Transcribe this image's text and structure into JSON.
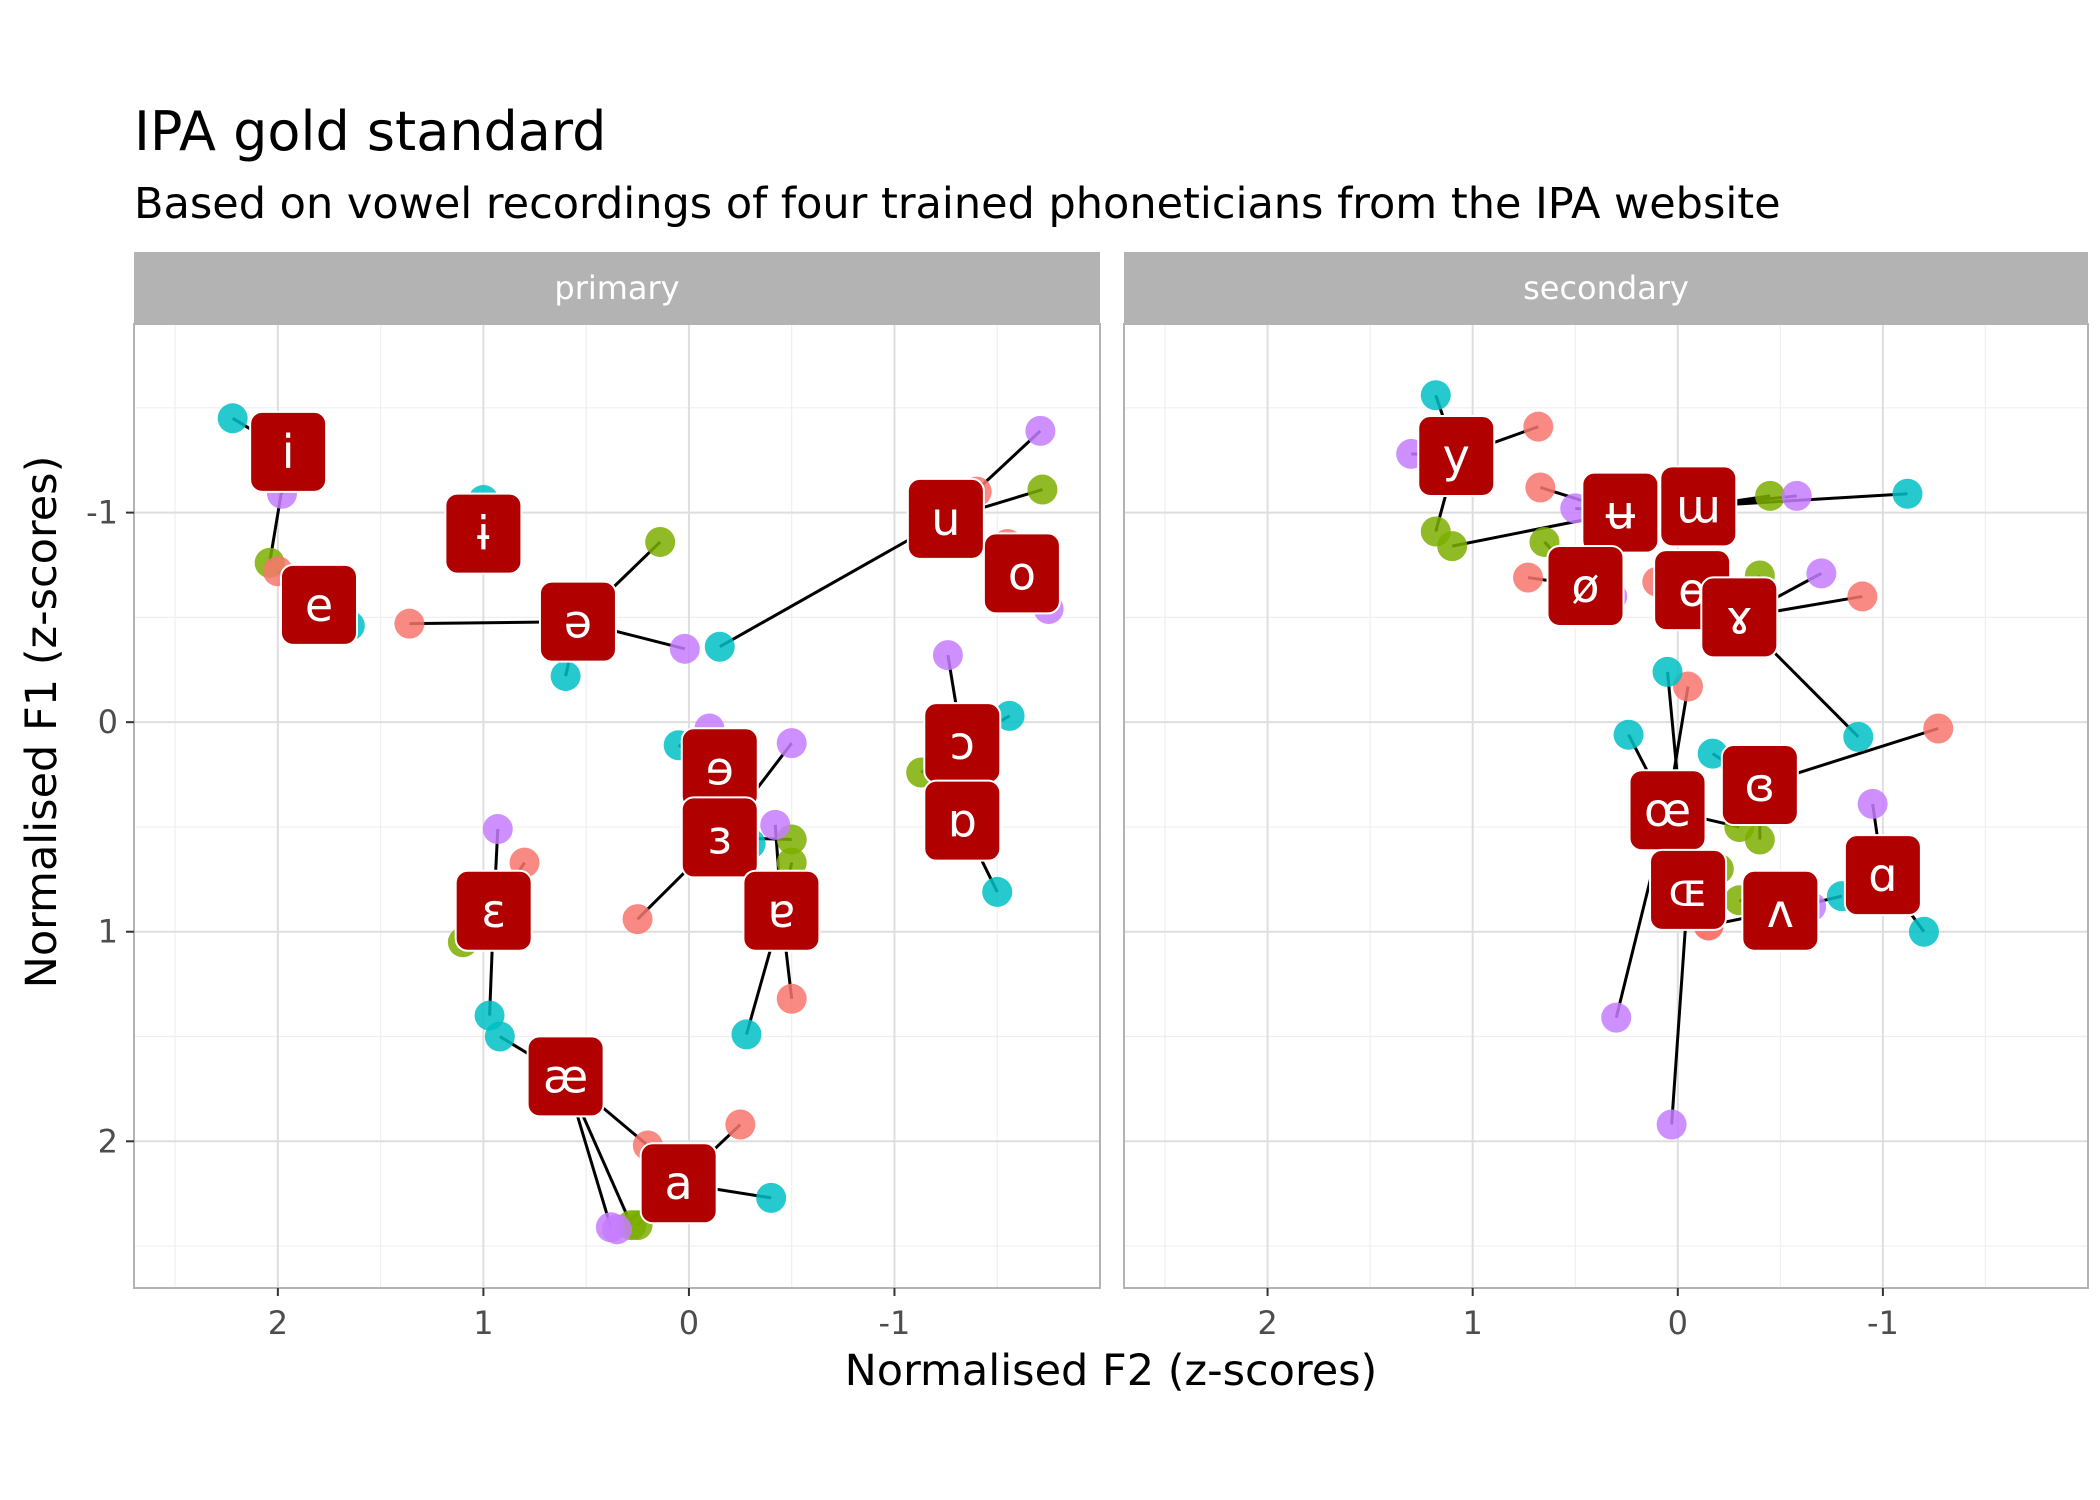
{
  "chart_data": {
    "type": "scatter",
    "title": "IPA gold standard",
    "subtitle": "Based on vowel recordings of four trained phoneticians from the IPA website",
    "xlabel": "Normalised F2 (z-scores)",
    "ylabel": "Normalised F1 (z-scores)",
    "x_reversed": true,
    "y_reversed": true,
    "xlim": [
      2.7,
      -2.0
    ],
    "ylim": [
      -1.9,
      2.7
    ],
    "x_ticks": [
      2,
      1,
      0,
      -1
    ],
    "x_tick_labels": [
      "2",
      "1",
      "0",
      "-1"
    ],
    "y_ticks": [
      -1,
      0,
      1,
      2
    ],
    "y_tick_labels": [
      "-1",
      "0",
      "1",
      "2"
    ],
    "grid": true,
    "legend": "none",
    "speaker_colors": [
      "#F8766D",
      "#7CAE00",
      "#00BFC4",
      "#C77CFF"
    ],
    "label_color": "#B00000",
    "panels": [
      {
        "name": "primary",
        "vowels": [
          {
            "label": "i",
            "x": 1.95,
            "y": -1.29,
            "points": [
              {
                "x": 2.22,
                "y": -1.45,
                "c": 2
              },
              {
                "x": 2.05,
                "y": -1.36,
                "c": 0
              },
              {
                "x": 2.04,
                "y": -0.76,
                "c": 1
              },
              {
                "x": 1.98,
                "y": -1.09,
                "c": 3
              }
            ]
          },
          {
            "label": "e",
            "x": 1.8,
            "y": -0.56,
            "points": [
              {
                "x": 2.0,
                "y": -0.72,
                "c": 0
              },
              {
                "x": 1.78,
                "y": -0.6,
                "c": 1
              },
              {
                "x": 1.65,
                "y": -0.46,
                "c": 2
              },
              {
                "x": 1.8,
                "y": -0.52,
                "c": 3
              }
            ]
          },
          {
            "label": "ɨ",
            "x": 1.0,
            "y": -0.9,
            "points": [
              {
                "x": 1.0,
                "y": -1.06,
                "c": 2
              },
              {
                "x": 1.02,
                "y": -0.95,
                "c": 0
              },
              {
                "x": 0.95,
                "y": -0.9,
                "c": 1
              },
              {
                "x": 1.08,
                "y": -0.86,
                "c": 3
              }
            ]
          },
          {
            "label": "ə",
            "x": 0.54,
            "y": -0.48,
            "points": [
              {
                "x": 1.36,
                "y": -0.47,
                "c": 0
              },
              {
                "x": 0.14,
                "y": -0.86,
                "c": 1
              },
              {
                "x": 0.6,
                "y": -0.22,
                "c": 2
              },
              {
                "x": 0.02,
                "y": -0.35,
                "c": 3
              }
            ]
          },
          {
            "label": "u",
            "x": -1.25,
            "y": -0.97,
            "points": [
              {
                "x": -1.4,
                "y": -1.1,
                "c": 0
              },
              {
                "x": -1.72,
                "y": -1.11,
                "c": 1
              },
              {
                "x": -0.15,
                "y": -0.36,
                "c": 2
              },
              {
                "x": -1.71,
                "y": -1.39,
                "c": 3
              }
            ]
          },
          {
            "label": "o",
            "x": -1.62,
            "y": -0.71,
            "points": [
              {
                "x": -1.55,
                "y": -0.85,
                "c": 0
              },
              {
                "x": -1.6,
                "y": -0.62,
                "c": 1
              },
              {
                "x": -1.68,
                "y": -0.6,
                "c": 2
              },
              {
                "x": -1.75,
                "y": -0.54,
                "c": 3
              }
            ]
          },
          {
            "label": "ɔ",
            "x": -1.33,
            "y": 0.1,
            "points": [
              {
                "x": -1.35,
                "y": 0.07,
                "c": 0
              },
              {
                "x": -1.13,
                "y": 0.24,
                "c": 1
              },
              {
                "x": -1.56,
                "y": -0.03,
                "c": 2
              },
              {
                "x": -1.26,
                "y": -0.32,
                "c": 3
              }
            ]
          },
          {
            "label": "ɒ",
            "x": -1.33,
            "y": 0.47,
            "points": [
              {
                "x": -1.3,
                "y": 0.4,
                "c": 0
              },
              {
                "x": -1.3,
                "y": 0.52,
                "c": 1
              },
              {
                "x": -1.5,
                "y": 0.81,
                "c": 2
              },
              {
                "x": -1.3,
                "y": 0.44,
                "c": 3
              }
            ]
          },
          {
            "label": "ɘ",
            "x": -0.15,
            "y": 0.22,
            "points": [
              {
                "x": -0.25,
                "y": 0.18,
                "c": 0
              },
              {
                "x": -0.2,
                "y": 0.27,
                "c": 1
              },
              {
                "x": 0.05,
                "y": 0.11,
                "c": 2
              },
              {
                "x": -0.1,
                "y": 0.03,
                "c": 3
              }
            ]
          },
          {
            "label": "ɜ",
            "x": -0.15,
            "y": 0.55,
            "points": [
              {
                "x": 0.25,
                "y": 0.94,
                "c": 0
              },
              {
                "x": -0.5,
                "y": 0.56,
                "c": 1
              },
              {
                "x": -0.3,
                "y": 0.58,
                "c": 2
              },
              {
                "x": -0.5,
                "y": 0.1,
                "c": 3
              }
            ]
          },
          {
            "label": "ɐ",
            "x": -0.45,
            "y": 0.9,
            "points": [
              {
                "x": -0.5,
                "y": 1.32,
                "c": 0
              },
              {
                "x": -0.5,
                "y": 0.67,
                "c": 1
              },
              {
                "x": -0.28,
                "y": 1.49,
                "c": 2
              },
              {
                "x": -0.42,
                "y": 0.49,
                "c": 3
              }
            ]
          },
          {
            "label": "ɛ",
            "x": 0.95,
            "y": 0.9,
            "points": [
              {
                "x": 0.8,
                "y": 0.67,
                "c": 0
              },
              {
                "x": 1.1,
                "y": 1.05,
                "c": 1
              },
              {
                "x": 0.97,
                "y": 1.4,
                "c": 2
              },
              {
                "x": 0.93,
                "y": 0.51,
                "c": 3
              }
            ]
          },
          {
            "label": "æ",
            "x": 0.6,
            "y": 1.69,
            "points": [
              {
                "x": 0.2,
                "y": 2.02,
                "c": 0
              },
              {
                "x": 0.28,
                "y": 2.4,
                "c": 1
              },
              {
                "x": 0.92,
                "y": 1.5,
                "c": 2
              },
              {
                "x": 0.38,
                "y": 2.41,
                "c": 3
              }
            ]
          },
          {
            "label": "a",
            "x": 0.05,
            "y": 2.2,
            "points": [
              {
                "x": -0.25,
                "y": 1.92,
                "c": 0
              },
              {
                "x": 0.25,
                "y": 2.4,
                "c": 1
              },
              {
                "x": -0.4,
                "y": 2.27,
                "c": 2
              },
              {
                "x": 0.35,
                "y": 2.42,
                "c": 3
              }
            ]
          }
        ]
      },
      {
        "name": "secondary",
        "vowels": [
          {
            "label": "y",
            "x": 1.08,
            "y": -1.27,
            "points": [
              {
                "x": 0.68,
                "y": -1.41,
                "c": 0
              },
              {
                "x": 1.18,
                "y": -0.91,
                "c": 1
              },
              {
                "x": 1.18,
                "y": -1.56,
                "c": 2
              },
              {
                "x": 1.3,
                "y": -1.28,
                "c": 3
              }
            ]
          },
          {
            "label": "ʉ",
            "x": 0.28,
            "y": -1.0,
            "points": [
              {
                "x": 0.67,
                "y": -1.12,
                "c": 0
              },
              {
                "x": 1.1,
                "y": -0.84,
                "c": 1
              },
              {
                "x": 0.3,
                "y": -1.05,
                "c": 2
              },
              {
                "x": 0.5,
                "y": -1.02,
                "c": 3
              }
            ]
          },
          {
            "label": "ɯ",
            "x": -0.1,
            "y": -1.03,
            "points": [
              {
                "x": -0.2,
                "y": -1.06,
                "c": 0
              },
              {
                "x": -0.45,
                "y": -1.08,
                "c": 1
              },
              {
                "x": -1.12,
                "y": -1.09,
                "c": 2
              },
              {
                "x": -0.58,
                "y": -1.08,
                "c": 3
              }
            ]
          },
          {
            "label": "ø",
            "x": 0.45,
            "y": -0.65,
            "points": [
              {
                "x": 0.73,
                "y": -0.69,
                "c": 0
              },
              {
                "x": 0.65,
                "y": -0.86,
                "c": 1
              },
              {
                "x": 0.5,
                "y": -0.72,
                "c": 2
              },
              {
                "x": 0.32,
                "y": -0.6,
                "c": 3
              }
            ]
          },
          {
            "label": "ɵ",
            "x": -0.07,
            "y": -0.63,
            "points": [
              {
                "x": 0.1,
                "y": -0.67,
                "c": 0
              },
              {
                "x": -0.05,
                "y": -0.7,
                "c": 1
              },
              {
                "x": -0.15,
                "y": -0.6,
                "c": 2
              },
              {
                "x": 0.05,
                "y": -0.64,
                "c": 3
              }
            ]
          },
          {
            "label": "ɤ",
            "x": -0.3,
            "y": -0.5,
            "points": [
              {
                "x": -0.9,
                "y": -0.6,
                "c": 0
              },
              {
                "x": -0.4,
                "y": -0.7,
                "c": 1
              },
              {
                "x": -0.88,
                "y": 0.07,
                "c": 2
              },
              {
                "x": -0.7,
                "y": -0.71,
                "c": 3
              }
            ]
          },
          {
            "label": "ɞ",
            "x": -0.4,
            "y": 0.3,
            "points": [
              {
                "x": -1.27,
                "y": 0.03,
                "c": 0
              },
              {
                "x": -0.4,
                "y": 0.56,
                "c": 1
              },
              {
                "x": -0.17,
                "y": 0.15,
                "c": 2
              },
              {
                "x": -0.3,
                "y": 0.35,
                "c": 3
              }
            ]
          },
          {
            "label": "œ",
            "x": 0.05,
            "y": 0.42,
            "points": [
              {
                "x": -0.05,
                "y": -0.17,
                "c": 0
              },
              {
                "x": -0.3,
                "y": 0.5,
                "c": 1
              },
              {
                "x": 0.24,
                "y": 0.06,
                "c": 2
              },
              {
                "x": 0.3,
                "y": 1.41,
                "c": 3
              }
            ]
          },
          {
            "label": "ɶ",
            "x": -0.05,
            "y": 0.8,
            "points": [
              {
                "x": -0.15,
                "y": 0.97,
                "c": 0
              },
              {
                "x": -0.2,
                "y": 0.7,
                "c": 1
              },
              {
                "x": 0.05,
                "y": -0.24,
                "c": 2
              },
              {
                "x": 0.03,
                "y": 1.92,
                "c": 3
              }
            ]
          },
          {
            "label": "ʌ",
            "x": -0.5,
            "y": 0.9,
            "points": [
              {
                "x": -0.15,
                "y": 0.97,
                "c": 0
              },
              {
                "x": -0.3,
                "y": 0.85,
                "c": 1
              },
              {
                "x": -0.8,
                "y": 0.83,
                "c": 2
              },
              {
                "x": -0.65,
                "y": 0.88,
                "c": 3
              }
            ]
          },
          {
            "label": "ɑ",
            "x": -1.0,
            "y": 0.73,
            "points": [
              {
                "x": -0.95,
                "y": 0.7,
                "c": 0
              },
              {
                "x": -1.0,
                "y": 0.75,
                "c": 1
              },
              {
                "x": -1.2,
                "y": 1.0,
                "c": 2
              },
              {
                "x": -0.95,
                "y": 0.39,
                "c": 3
              }
            ]
          }
        ]
      }
    ]
  }
}
